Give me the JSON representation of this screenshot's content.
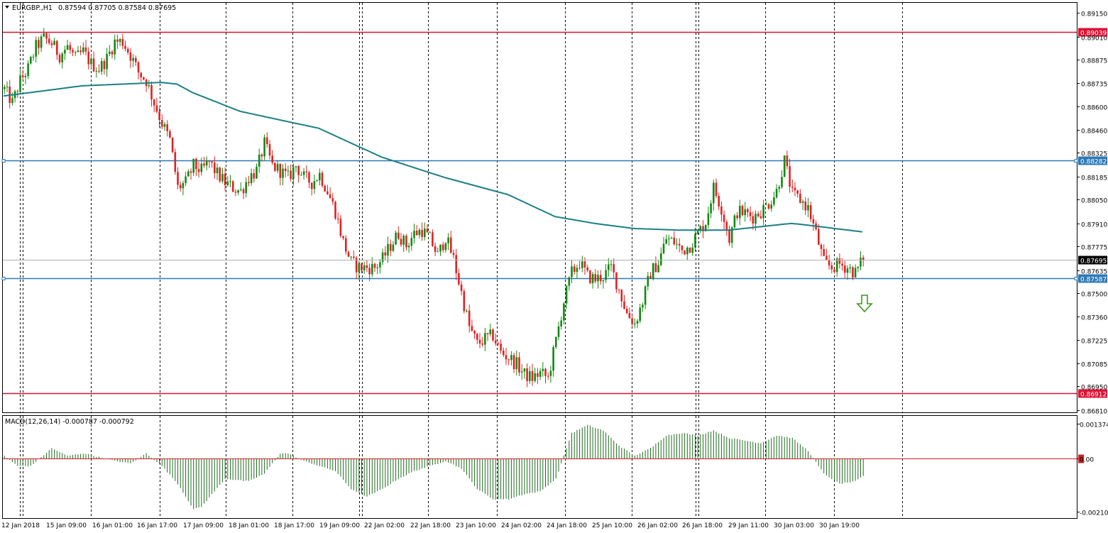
{
  "header": {
    "symbol_tf": "EURGBP.,H1",
    "ohlc": "0.87594 0.87705 0.87584 0.87695"
  },
  "colors": {
    "bull": "#118a11",
    "bear": "#e02222",
    "ma": "#1b7f86",
    "res_line": "#dd1133",
    "sup_line": "#2e78b4",
    "macd": "#1d6b1d",
    "grid": "#000000"
  },
  "chart_data": [
    {
      "type": "candlestick",
      "title": "EURGBP.,H1",
      "ylim": [
        0.8681,
        0.892
      ],
      "y_ticks": [
        "0.89150",
        "0.89010",
        "0.88875",
        "0.88735",
        "0.88600",
        "0.88460",
        "0.88325",
        "0.88185",
        "0.88050",
        "0.87910",
        "0.87775",
        "0.87635",
        "0.87500",
        "0.87360",
        "0.87225",
        "0.87085",
        "0.86950",
        "0.86810"
      ],
      "x_tick_labels": [
        "12 Jan 2018",
        "15 Jan 09:00",
        "16 Jan 01:00",
        "16 Jan 17:00",
        "17 Jan 09:00",
        "18 Jan 01:00",
        "18 Jan 17:00",
        "19 Jan 09:00",
        "22 Jan 02:00",
        "22 Jan 18:00",
        "23 Jan 10:00",
        "24 Jan 02:00",
        "24 Jan 18:00",
        "25 Jan 10:00",
        "26 Jan 02:00",
        "26 Jan 18:00",
        "29 Jan 11:00",
        "30 Jan 03:00",
        "30 Jan 19:00"
      ],
      "last_close": 0.87695,
      "price_path": [
        [
          0,
          0.887
        ],
        [
          3,
          0.8862
        ],
        [
          6,
          0.8875
        ],
        [
          9,
          0.8882
        ],
        [
          12,
          0.8895
        ],
        [
          15,
          0.89
        ],
        [
          18,
          0.8897
        ],
        [
          21,
          0.889
        ],
        [
          24,
          0.8895
        ],
        [
          27,
          0.8888
        ],
        [
          30,
          0.8892
        ],
        [
          33,
          0.8885
        ],
        [
          36,
          0.8882
        ],
        [
          39,
          0.8888
        ],
        [
          42,
          0.8898
        ],
        [
          45,
          0.8898
        ],
        [
          48,
          0.889
        ],
        [
          51,
          0.888
        ],
        [
          54,
          0.8875
        ],
        [
          57,
          0.8862
        ],
        [
          60,
          0.885
        ],
        [
          63,
          0.884
        ],
        [
          66,
          0.8812
        ],
        [
          69,
          0.8815
        ],
        [
          72,
          0.8825
        ],
        [
          75,
          0.8822
        ],
        [
          78,
          0.8827
        ],
        [
          81,
          0.882
        ],
        [
          84,
          0.8815
        ],
        [
          87,
          0.8812
        ],
        [
          90,
          0.881
        ],
        [
          93,
          0.8818
        ],
        [
          96,
          0.8822
        ],
        [
          99,
          0.8838
        ],
        [
          102,
          0.8825
        ],
        [
          105,
          0.8822
        ],
        [
          108,
          0.8818
        ],
        [
          111,
          0.8825
        ],
        [
          114,
          0.8818
        ],
        [
          117,
          0.8815
        ],
        [
          120,
          0.882
        ],
        [
          123,
          0.881
        ],
        [
          126,
          0.8798
        ],
        [
          129,
          0.878
        ],
        [
          132,
          0.8768
        ],
        [
          135,
          0.8765
        ],
        [
          138,
          0.8765
        ],
        [
          141,
          0.8765
        ],
        [
          144,
          0.877
        ],
        [
          147,
          0.8778
        ],
        [
          150,
          0.8785
        ],
        [
          153,
          0.8778
        ],
        [
          156,
          0.8785
        ],
        [
          159,
          0.8787
        ],
        [
          162,
          0.8782
        ],
        [
          165,
          0.8772
        ],
        [
          168,
          0.8783
        ],
        [
          171,
          0.877
        ],
        [
          174,
          0.875
        ],
        [
          177,
          0.873
        ],
        [
          180,
          0.872
        ],
        [
          183,
          0.8723
        ],
        [
          186,
          0.8725
        ],
        [
          189,
          0.8715
        ],
        [
          192,
          0.8712
        ],
        [
          195,
          0.8708
        ],
        [
          198,
          0.8702
        ],
        [
          201,
          0.87
        ],
        [
          204,
          0.8703
        ],
        [
          207,
          0.87
        ],
        [
          210,
          0.8722
        ],
        [
          213,
          0.8745
        ],
        [
          216,
          0.8762
        ],
        [
          219,
          0.8768
        ],
        [
          222,
          0.876
        ],
        [
          225,
          0.8758
        ],
        [
          228,
          0.876
        ],
        [
          231,
          0.8765
        ],
        [
          234,
          0.8752
        ],
        [
          237,
          0.8738
        ],
        [
          240,
          0.8732
        ],
        [
          243,
          0.8745
        ],
        [
          246,
          0.8762
        ],
        [
          249,
          0.8768
        ],
        [
          252,
          0.8782
        ],
        [
          255,
          0.878
        ],
        [
          258,
          0.8775
        ],
        [
          261,
          0.8778
        ],
        [
          264,
          0.8785
        ],
        [
          267,
          0.8792
        ],
        [
          270,
          0.8812
        ],
        [
          273,
          0.88
        ],
        [
          276,
          0.8782
        ],
        [
          279,
          0.8798
        ],
        [
          282,
          0.8797
        ],
        [
          285,
          0.8795
        ],
        [
          288,
          0.8798
        ],
        [
          291,
          0.8803
        ],
        [
          294,
          0.881
        ],
        [
          297,
          0.8828
        ],
        [
          300,
          0.8808
        ],
        [
          303,
          0.8805
        ],
        [
          306,
          0.88
        ],
        [
          309,
          0.8785
        ],
        [
          312,
          0.8768
        ],
        [
          315,
          0.8765
        ],
        [
          318,
          0.8767
        ],
        [
          321,
          0.8765
        ],
        [
          324,
          0.8762
        ],
        [
          327,
          0.877
        ]
      ],
      "moving_average": [
        [
          0,
          0.8866
        ],
        [
          30,
          0.8872
        ],
        [
          60,
          0.8874
        ],
        [
          66,
          0.8873
        ],
        [
          72,
          0.8868
        ],
        [
          90,
          0.8857
        ],
        [
          120,
          0.8847
        ],
        [
          144,
          0.883
        ],
        [
          168,
          0.8818
        ],
        [
          192,
          0.8808
        ],
        [
          210,
          0.8795
        ],
        [
          225,
          0.8791
        ],
        [
          240,
          0.8788
        ],
        [
          258,
          0.8787
        ],
        [
          276,
          0.8787
        ],
        [
          294,
          0.879
        ],
        [
          300,
          0.8791
        ],
        [
          306,
          0.879
        ],
        [
          327,
          0.8786
        ]
      ],
      "horizontal_lines": [
        {
          "name": "resistance-upper",
          "value": 0.89039,
          "label": "0.89039",
          "kind": "res"
        },
        {
          "name": "resistance-mid",
          "value": 0.88282,
          "label": "0.88282",
          "kind": "sup"
        },
        {
          "name": "support-mid",
          "value": 0.87587,
          "label": "0.87587",
          "kind": "sup"
        },
        {
          "name": "support-lower",
          "value": 0.86912,
          "label": "0.86912",
          "kind": "res"
        }
      ],
      "annotation": {
        "type": "arrow-down",
        "note": "bearish outlook"
      }
    },
    {
      "type": "bar",
      "title": "MACD(12,26,14) -0.000787 -0.000792",
      "ylim": [
        -0.00212,
        0.0015
      ],
      "y_ticks": [
        "0.001374",
        "0.00",
        "-0.002106"
      ],
      "macd_path": [
        [
          0,
          0.0001
        ],
        [
          5,
          -0.0003
        ],
        [
          10,
          -0.0003
        ],
        [
          18,
          0.0004
        ],
        [
          24,
          0.0001
        ],
        [
          30,
          0.0002
        ],
        [
          42,
          -0.0001
        ],
        [
          48,
          -0.0002
        ],
        [
          54,
          0.0002
        ],
        [
          60,
          -0.0003
        ],
        [
          66,
          -0.001
        ],
        [
          72,
          -0.002
        ],
        [
          75,
          -0.0019
        ],
        [
          84,
          -0.0008
        ],
        [
          93,
          -0.0009
        ],
        [
          99,
          -0.0006
        ],
        [
          105,
          0.0002
        ],
        [
          108,
          0.0002
        ],
        [
          114,
          -0.0001
        ],
        [
          120,
          -0.0003
        ],
        [
          126,
          -0.0005
        ],
        [
          132,
          -0.0012
        ],
        [
          138,
          -0.0015
        ],
        [
          144,
          -0.0012
        ],
        [
          150,
          -0.0008
        ],
        [
          156,
          -0.0005
        ],
        [
          162,
          -0.0003
        ],
        [
          168,
          -0.0001
        ],
        [
          174,
          -0.0004
        ],
        [
          180,
          -0.0012
        ],
        [
          186,
          -0.0016
        ],
        [
          192,
          -0.0016
        ],
        [
          198,
          -0.0014
        ],
        [
          204,
          -0.0013
        ],
        [
          210,
          -0.0008
        ],
        [
          216,
          0.001
        ],
        [
          222,
          0.0013
        ],
        [
          228,
          0.0011
        ],
        [
          234,
          0.0005
        ],
        [
          240,
          0.0001
        ],
        [
          246,
          0.0004
        ],
        [
          252,
          0.0009
        ],
        [
          258,
          0.001
        ],
        [
          264,
          0.0009
        ],
        [
          270,
          0.0011
        ],
        [
          276,
          0.0008
        ],
        [
          282,
          0.0007
        ],
        [
          288,
          0.0006
        ],
        [
          294,
          0.0009
        ],
        [
          300,
          0.0008
        ],
        [
          306,
          0.0003
        ],
        [
          312,
          -0.0006
        ],
        [
          318,
          -0.001
        ],
        [
          324,
          -0.0009
        ],
        [
          327,
          -0.0007
        ]
      ]
    }
  ]
}
